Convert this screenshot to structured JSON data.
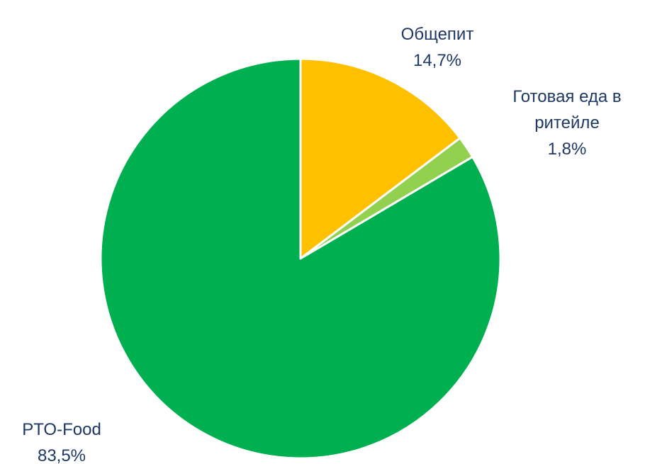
{
  "chart_data": {
    "type": "pie",
    "categories": [
      "Общепит",
      "Готовая еда в ритейле",
      "PTO-Food"
    ],
    "values": [
      14.7,
      1.8,
      83.5
    ],
    "value_labels": [
      "14,7%",
      "1,8%",
      "83,5%"
    ],
    "colors": [
      "#ffc000",
      "#92d050",
      "#00b050"
    ]
  }
}
